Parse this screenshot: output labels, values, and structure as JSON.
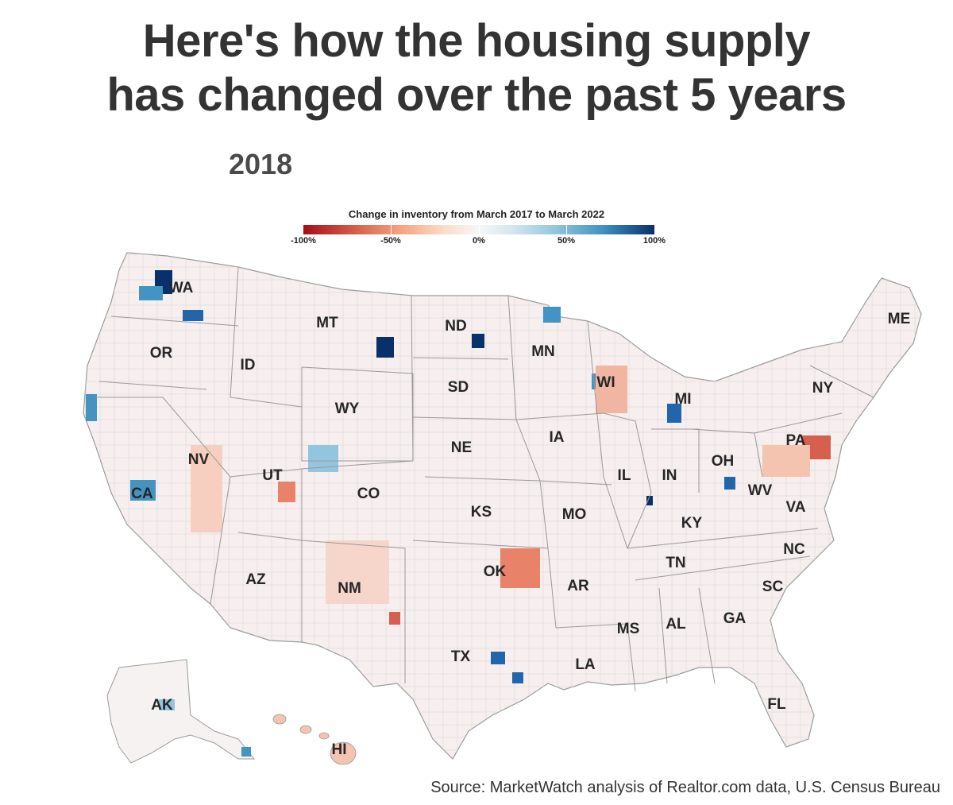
{
  "title_line1": "Here's how the housing supply",
  "title_line2": "has changed over the past 5 years",
  "year": "2018",
  "legend": {
    "title": "Change in inventory from March 2017 to March 2022",
    "ticks": [
      "-100%",
      "-50%",
      "0%",
      "50%",
      "100%"
    ],
    "colors": [
      "#a50f15",
      "#d6604d",
      "#f4a582",
      "#fddbc7",
      "#f7f7f7",
      "#d1e5f0",
      "#92c5de",
      "#4393c3",
      "#08306b"
    ]
  },
  "states": [
    "WA",
    "OR",
    "ID",
    "MT",
    "WY",
    "ND",
    "SD",
    "NE",
    "MN",
    "IA",
    "WI",
    "MI",
    "NY",
    "ME",
    "PA",
    "OH",
    "IN",
    "IL",
    "WV",
    "VA",
    "KY",
    "NC",
    "TN",
    "SC",
    "GA",
    "AL",
    "MS",
    "AR",
    "MO",
    "KS",
    "OK",
    "TX",
    "LA",
    "FL",
    "CO",
    "UT",
    "NV",
    "CA",
    "AZ",
    "NM",
    "AK",
    "HI"
  ],
  "source": "Source: MarketWatch analysis of Realtor.com data, U.S. Census Bureau"
}
